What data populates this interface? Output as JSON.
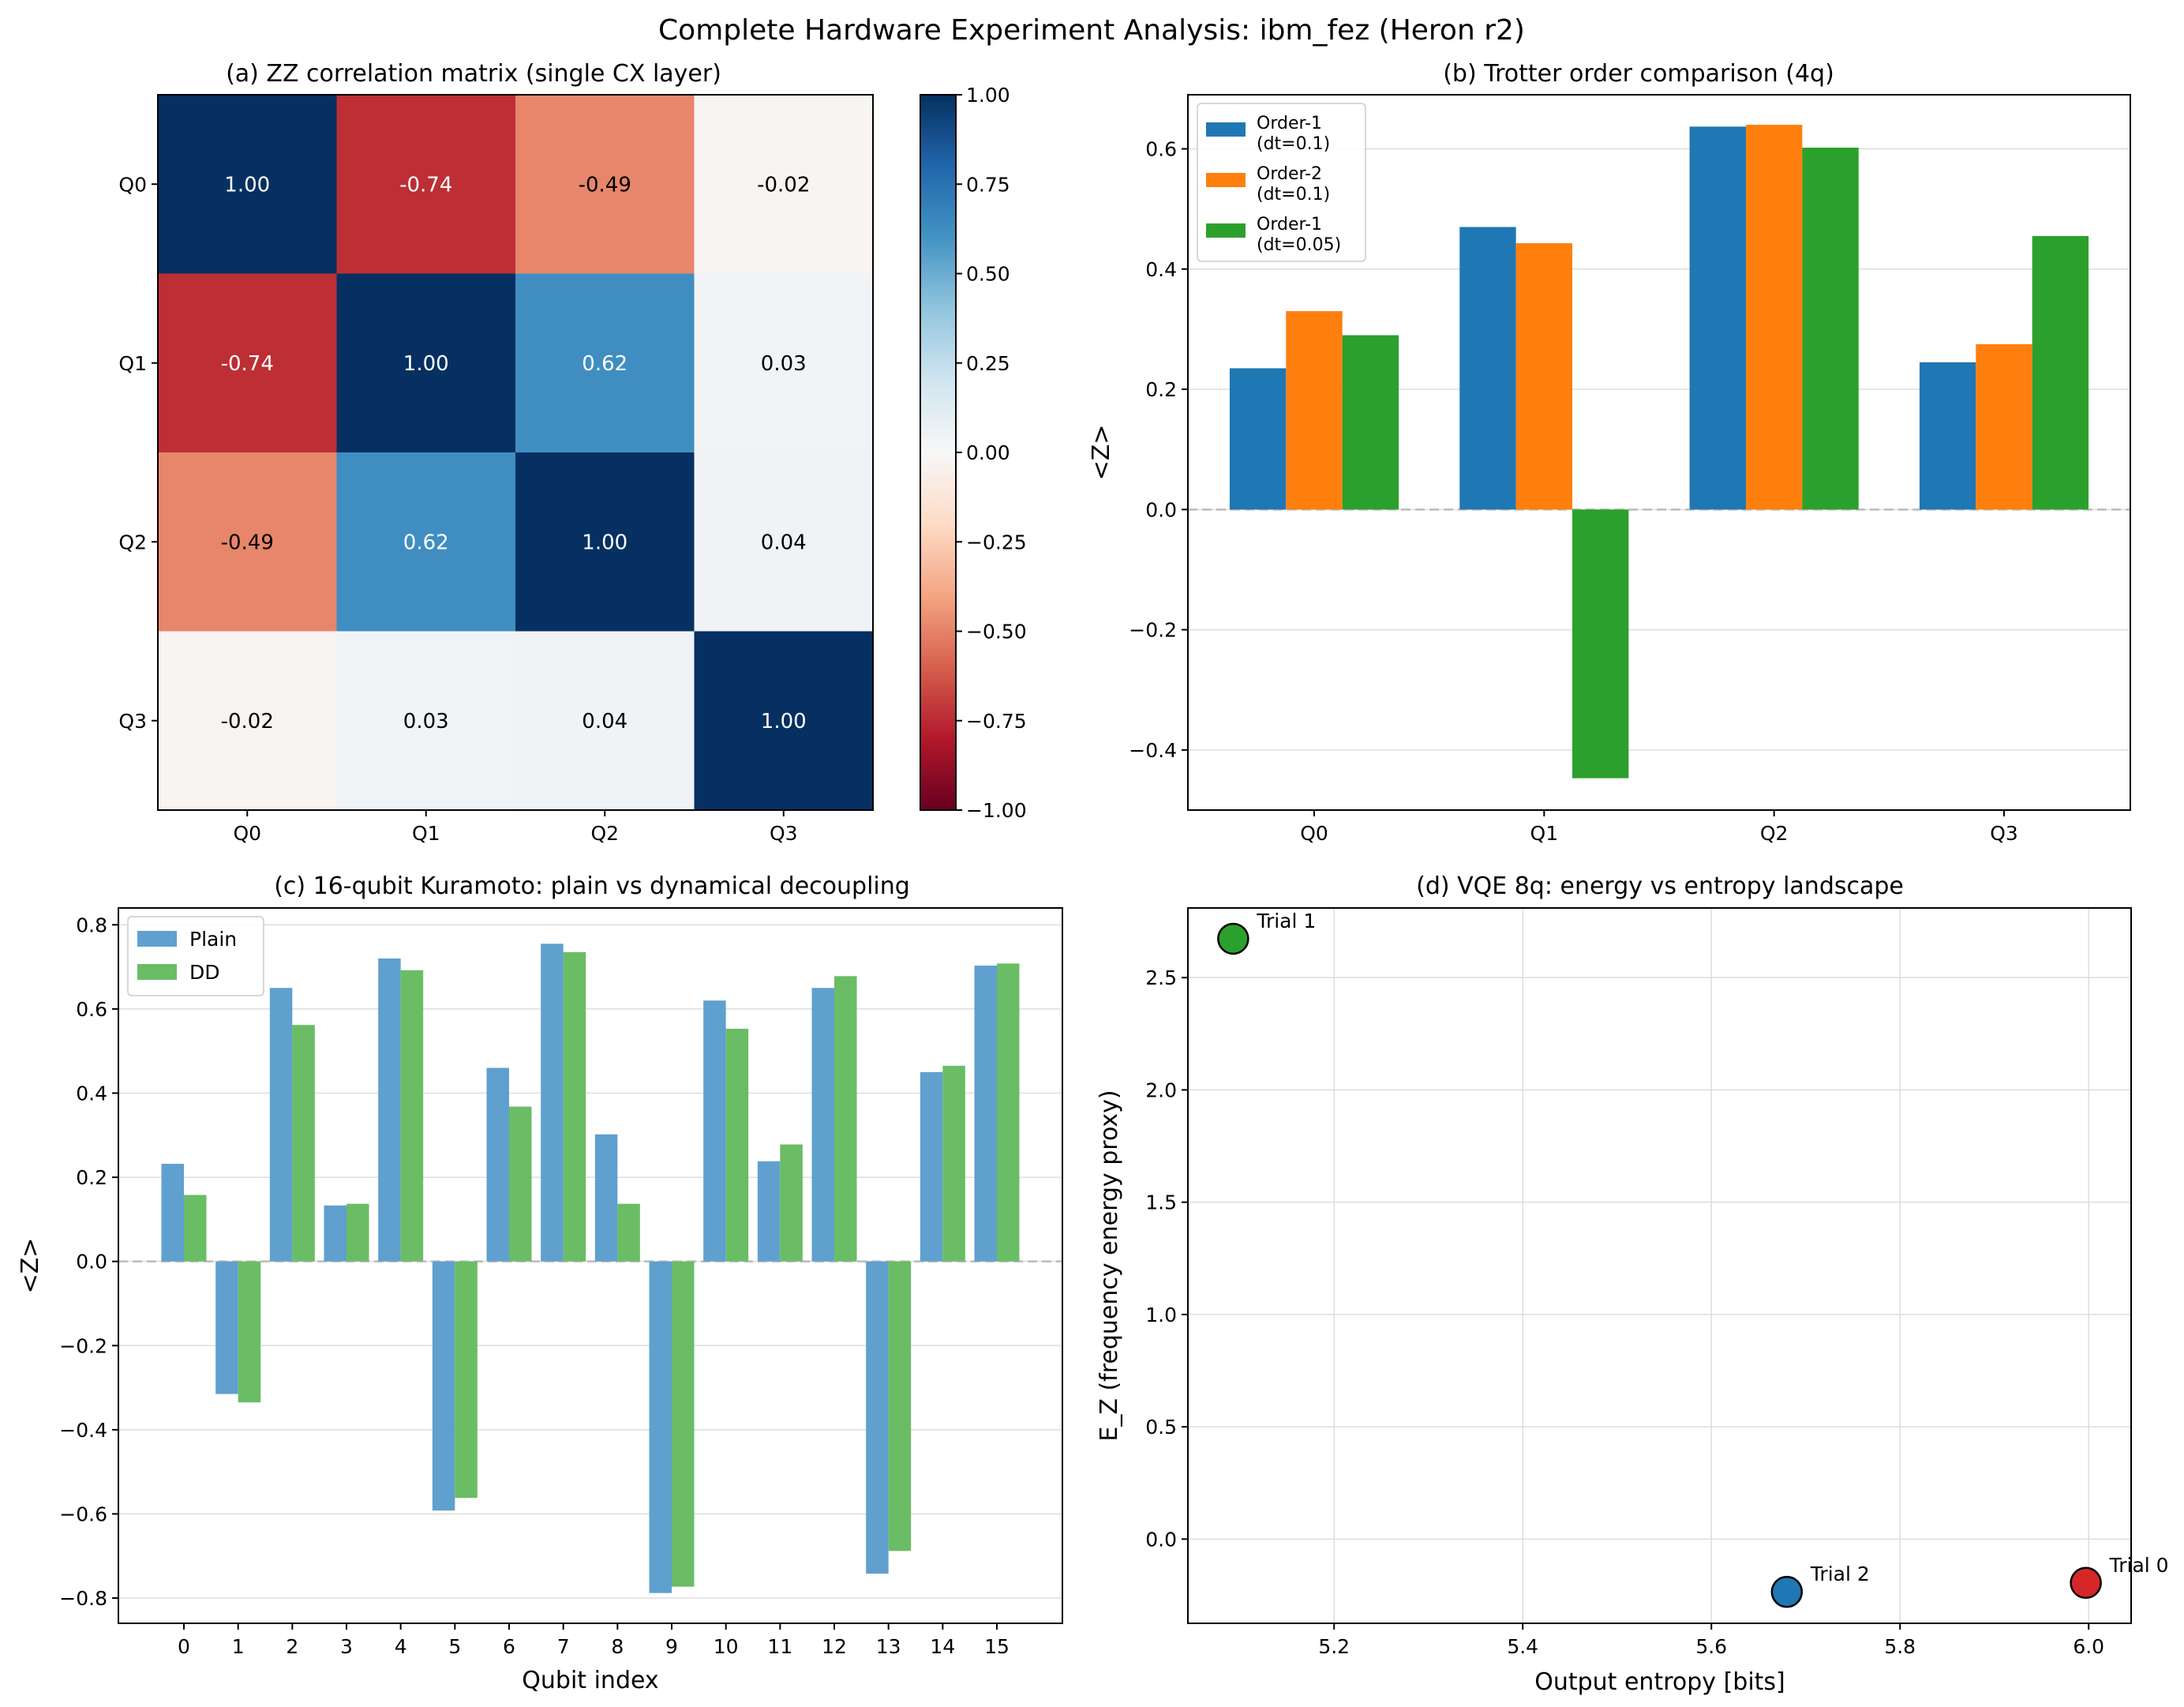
{
  "suptitle": "Complete Hardware Experiment Analysis: ibm_fez (Heron r2)",
  "colors": {
    "blue": "#1f77b4",
    "orange": "#ff7f0e",
    "green": "#2ca02c",
    "red": "#d62728",
    "plain": "#5fa0cf",
    "dd": "#6abd64",
    "zero_line": "#bbbbbb"
  },
  "chart_data": [
    {
      "id": "a",
      "type": "heatmap",
      "title": "(a) ZZ correlation matrix (single CX layer)",
      "row_labels": [
        "Q0",
        "Q1",
        "Q2",
        "Q3"
      ],
      "col_labels": [
        "Q0",
        "Q1",
        "Q2",
        "Q3"
      ],
      "matrix": [
        [
          1.0,
          -0.74,
          -0.49,
          -0.02
        ],
        [
          -0.74,
          1.0,
          0.62,
          0.03
        ],
        [
          -0.49,
          0.62,
          1.0,
          0.04
        ],
        [
          -0.02,
          0.03,
          0.04,
          1.0
        ]
      ],
      "colormap": "RdBu",
      "vmin": -1.0,
      "vmax": 1.0,
      "colorbar_ticks": [
        "1.00",
        "0.75",
        "0.50",
        "0.25",
        "0.00",
        "−0.25",
        "−0.50",
        "−0.75",
        "−1.00"
      ],
      "colorbar_tick_values": [
        1.0,
        0.75,
        0.5,
        0.25,
        0.0,
        -0.25,
        -0.5,
        -0.75,
        -1.0
      ]
    },
    {
      "id": "b",
      "type": "bar",
      "title": "(b) Trotter order comparison (4q)",
      "ylabel": "<Z>",
      "xlabel": "",
      "categories": [
        "Q0",
        "Q1",
        "Q2",
        "Q3"
      ],
      "ylim": [
        -0.5,
        0.69
      ],
      "yticks": [
        -0.4,
        -0.2,
        0.0,
        0.2,
        0.4,
        0.6
      ],
      "ytick_labels": [
        "−0.4",
        "−0.2",
        "0.0",
        "0.2",
        "0.4",
        "0.6"
      ],
      "legend_position": "upper-left",
      "series": [
        {
          "name_line1": "Order-1",
          "name_line2": "(dt=0.1)",
          "color": "#1f77b4",
          "values": [
            0.235,
            0.47,
            0.637,
            0.245
          ]
        },
        {
          "name_line1": "Order-2",
          "name_line2": "(dt=0.1)",
          "color": "#ff7f0e",
          "values": [
            0.33,
            0.443,
            0.64,
            0.275
          ]
        },
        {
          "name_line1": "Order-1",
          "name_line2": "(dt=0.05)",
          "color": "#2ca02c",
          "values": [
            0.29,
            -0.447,
            0.602,
            0.455
          ]
        }
      ]
    },
    {
      "id": "c",
      "type": "bar",
      "title": "(c) 16-qubit Kuramoto: plain vs dynamical decoupling",
      "ylabel": "<Z>",
      "xlabel": "Qubit index",
      "categories": [
        "0",
        "1",
        "2",
        "3",
        "4",
        "5",
        "6",
        "7",
        "8",
        "9",
        "10",
        "11",
        "12",
        "13",
        "14",
        "15"
      ],
      "ylim": [
        -0.86,
        0.84
      ],
      "yticks": [
        -0.8,
        -0.6,
        -0.4,
        -0.2,
        0.0,
        0.2,
        0.4,
        0.6,
        0.8
      ],
      "ytick_labels": [
        "−0.8",
        "−0.6",
        "−0.4",
        "−0.2",
        "0.0",
        "0.2",
        "0.4",
        "0.6",
        "0.8"
      ],
      "legend_position": "upper-left",
      "series": [
        {
          "name": "Plain",
          "color": "#5fa0cf",
          "values": [
            0.232,
            -0.315,
            0.65,
            0.133,
            0.72,
            -0.592,
            0.46,
            0.755,
            0.302,
            -0.788,
            0.62,
            0.238,
            0.65,
            -0.742,
            0.45,
            0.703
          ]
        },
        {
          "name": "DD",
          "color": "#6abd64",
          "values": [
            0.158,
            -0.335,
            0.562,
            0.137,
            0.692,
            -0.562,
            0.368,
            0.735,
            0.137,
            -0.773,
            0.553,
            0.278,
            0.678,
            -0.688,
            0.465,
            0.708
          ]
        }
      ]
    },
    {
      "id": "d",
      "type": "scatter",
      "title": "(d) VQE 8q: energy vs entropy landscape",
      "xlabel": "Output entropy [bits]",
      "ylabel": "E_Z (frequency energy proxy)",
      "xlim": [
        5.045,
        6.045
      ],
      "ylim": [
        -0.375,
        2.81
      ],
      "xticks": [
        5.2,
        5.4,
        5.6,
        5.8,
        6.0
      ],
      "xtick_labels": [
        "5.2",
        "5.4",
        "5.6",
        "5.8",
        "6.0"
      ],
      "yticks": [
        0.0,
        0.5,
        1.0,
        1.5,
        2.0,
        2.5
      ],
      "ytick_labels": [
        "0.0",
        "0.5",
        "1.0",
        "1.5",
        "2.0",
        "2.5"
      ],
      "points": [
        {
          "label": "Trial 1",
          "x": 5.093,
          "y": 2.673,
          "color": "#2ca02c"
        },
        {
          "label": "Trial 2",
          "x": 5.68,
          "y": -0.235,
          "color": "#1f77b4"
        },
        {
          "label": "Trial 0",
          "x": 5.997,
          "y": -0.195,
          "color": "#d62728"
        }
      ]
    }
  ]
}
